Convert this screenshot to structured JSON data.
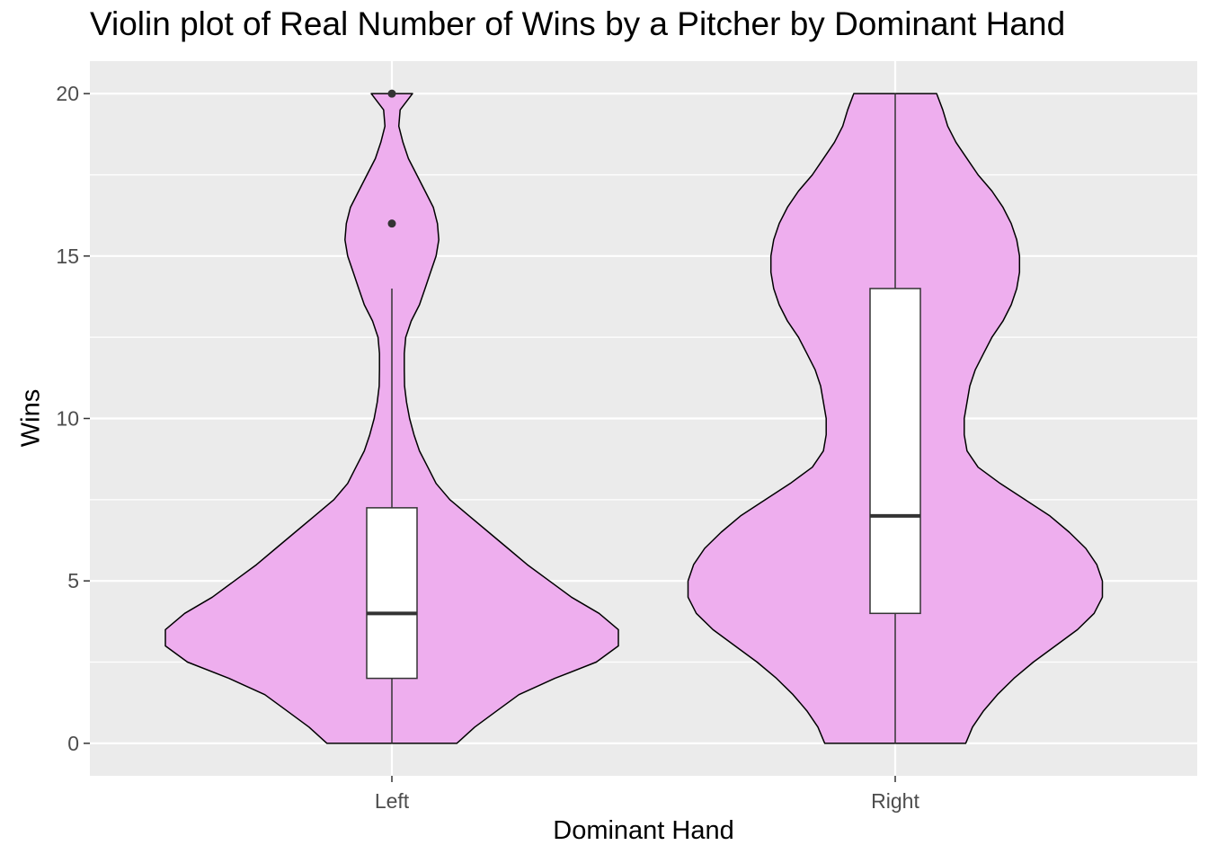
{
  "chart_data": {
    "type": "violin",
    "title": "Violin plot of Real Number of Wins by a Pitcher by Dominant Hand",
    "xlabel": "Dominant Hand",
    "ylabel": "Wins",
    "categories": [
      "Left",
      "Right"
    ],
    "ylim": [
      -1,
      21
    ],
    "yticks": [
      0,
      5,
      10,
      15,
      20
    ],
    "grid": true,
    "legend": "none",
    "fill_color": "#EEAEEE",
    "panel_color": "#EBEBEB",
    "series": [
      {
        "category": "Left",
        "violin_range": [
          0,
          20
        ],
        "violin_half_width": [
          [
            0,
            0.235
          ],
          [
            0.5,
            0.3
          ],
          [
            1,
            0.38
          ],
          [
            1.5,
            0.46
          ],
          [
            2,
            0.59
          ],
          [
            2.5,
            0.74
          ],
          [
            3,
            0.82
          ],
          [
            3.5,
            0.82
          ],
          [
            4,
            0.75
          ],
          [
            4.5,
            0.65
          ],
          [
            5,
            0.57
          ],
          [
            5.5,
            0.49
          ],
          [
            6,
            0.42
          ],
          [
            6.5,
            0.35
          ],
          [
            7,
            0.28
          ],
          [
            7.5,
            0.21
          ],
          [
            8,
            0.16
          ],
          [
            8.5,
            0.13
          ],
          [
            9,
            0.1
          ],
          [
            9.5,
            0.08
          ],
          [
            10,
            0.064
          ],
          [
            10.5,
            0.053
          ],
          [
            11,
            0.046
          ],
          [
            11.5,
            0.045
          ],
          [
            12,
            0.045
          ],
          [
            12.5,
            0.05
          ],
          [
            13,
            0.07
          ],
          [
            13.5,
            0.1
          ],
          [
            14,
            0.12
          ],
          [
            14.5,
            0.14
          ],
          [
            15,
            0.16
          ],
          [
            15.5,
            0.17
          ],
          [
            16,
            0.165
          ],
          [
            16.5,
            0.15
          ],
          [
            17,
            0.12
          ],
          [
            17.5,
            0.09
          ],
          [
            18,
            0.06
          ],
          [
            18.5,
            0.04
          ],
          [
            19,
            0.025
          ],
          [
            19.5,
            0.03
          ],
          [
            20,
            0.075
          ]
        ],
        "box": {
          "min": 0,
          "q1": 2,
          "median": 4,
          "q3": 7.25,
          "max": 14
        },
        "outliers": [
          16,
          20
        ]
      },
      {
        "category": "Right",
        "violin_range": [
          0,
          20
        ],
        "violin_half_width": [
          [
            0,
            0.255
          ],
          [
            0.5,
            0.28
          ],
          [
            1,
            0.32
          ],
          [
            1.5,
            0.37
          ],
          [
            2,
            0.43
          ],
          [
            2.5,
            0.5
          ],
          [
            3,
            0.58
          ],
          [
            3.5,
            0.66
          ],
          [
            4,
            0.72
          ],
          [
            4.5,
            0.75
          ],
          [
            5,
            0.75
          ],
          [
            5.5,
            0.73
          ],
          [
            6,
            0.69
          ],
          [
            6.5,
            0.63
          ],
          [
            7,
            0.56
          ],
          [
            7.5,
            0.47
          ],
          [
            8,
            0.38
          ],
          [
            8.5,
            0.3
          ],
          [
            9,
            0.26
          ],
          [
            9.5,
            0.25
          ],
          [
            10,
            0.25
          ],
          [
            10.5,
            0.26
          ],
          [
            11,
            0.27
          ],
          [
            11.5,
            0.29
          ],
          [
            12,
            0.32
          ],
          [
            12.5,
            0.35
          ],
          [
            13,
            0.39
          ],
          [
            13.5,
            0.42
          ],
          [
            14,
            0.44
          ],
          [
            14.5,
            0.45
          ],
          [
            15,
            0.45
          ],
          [
            15.5,
            0.44
          ],
          [
            16,
            0.42
          ],
          [
            16.5,
            0.39
          ],
          [
            17,
            0.35
          ],
          [
            17.5,
            0.3
          ],
          [
            18,
            0.26
          ],
          [
            18.5,
            0.22
          ],
          [
            19,
            0.19
          ],
          [
            19.5,
            0.172
          ],
          [
            20,
            0.15
          ]
        ],
        "box": {
          "min": 0,
          "q1": 4,
          "median": 7,
          "q3": 14,
          "max": 20
        },
        "outliers": []
      }
    ]
  }
}
